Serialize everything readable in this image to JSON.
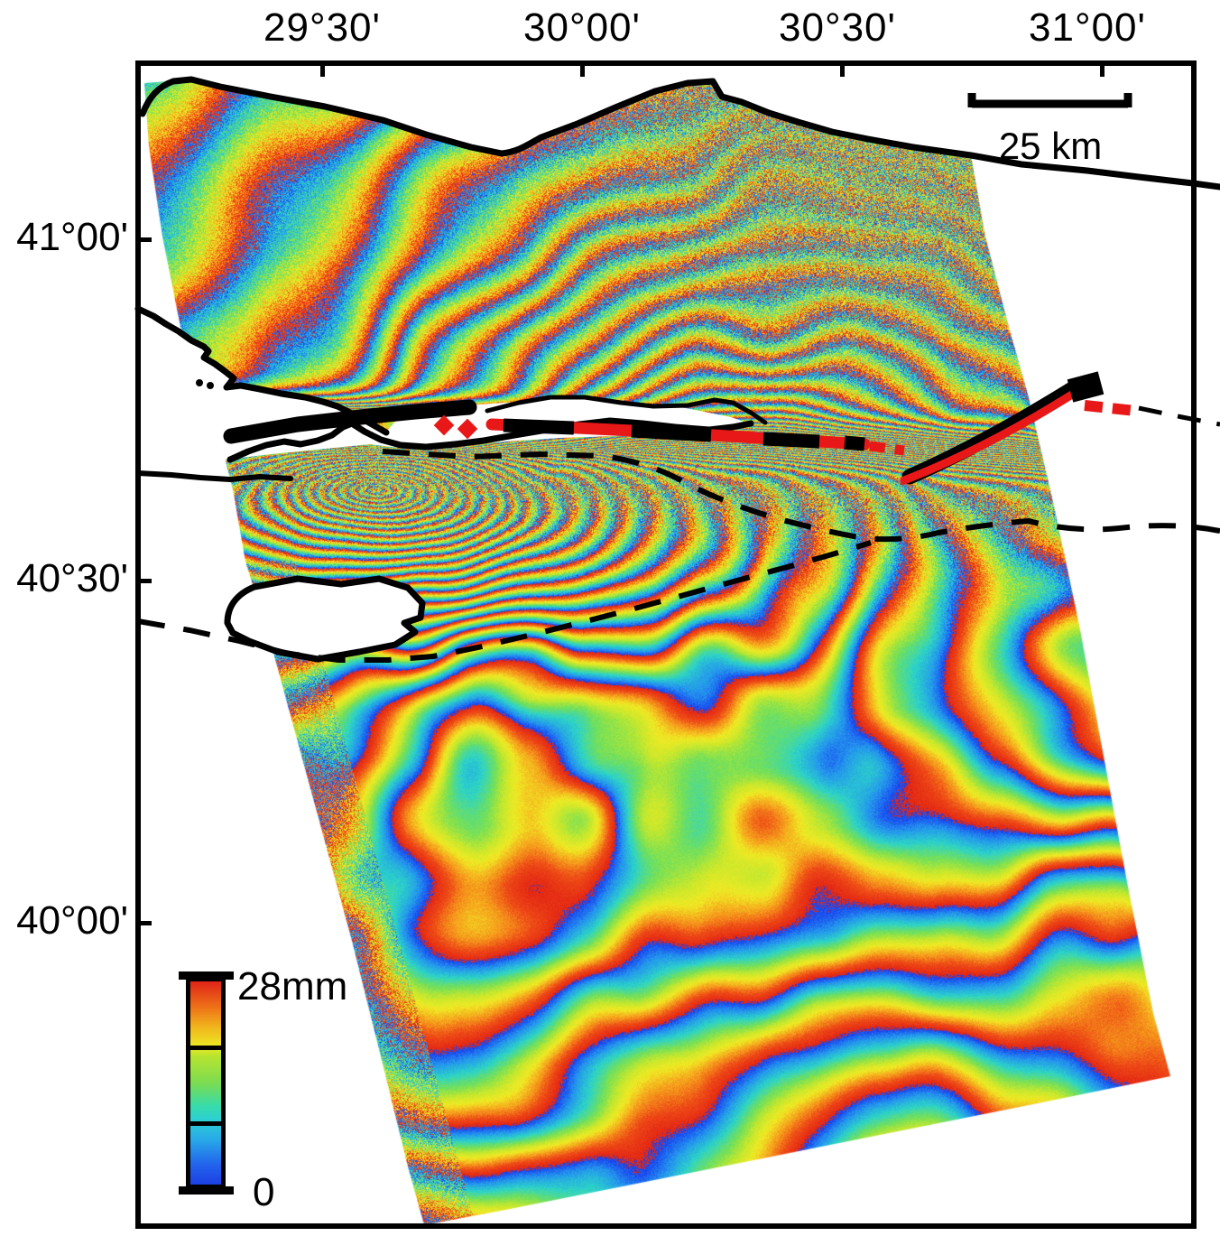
{
  "figure": {
    "axes": {
      "top_ticks": [
        "29°30'",
        "30°00'",
        "30°30'",
        "31°00'"
      ],
      "left_ticks": [
        "41°00'",
        "40°30'",
        "40°00'"
      ]
    },
    "scale_bar": {
      "label": "25 km"
    },
    "colorbar": {
      "max_label": "28mm",
      "min_label": "0",
      "stops_top_to_bottom": [
        "#e02418",
        "#f0b81c",
        "#eee824",
        "#7cdc50",
        "#2cd0d4",
        "#28a8e8",
        "#1c40e4"
      ]
    },
    "colors": {
      "surface_rupture_red": "#e81818",
      "linework_black": "#000000",
      "background": "#ffffff"
    }
  }
}
